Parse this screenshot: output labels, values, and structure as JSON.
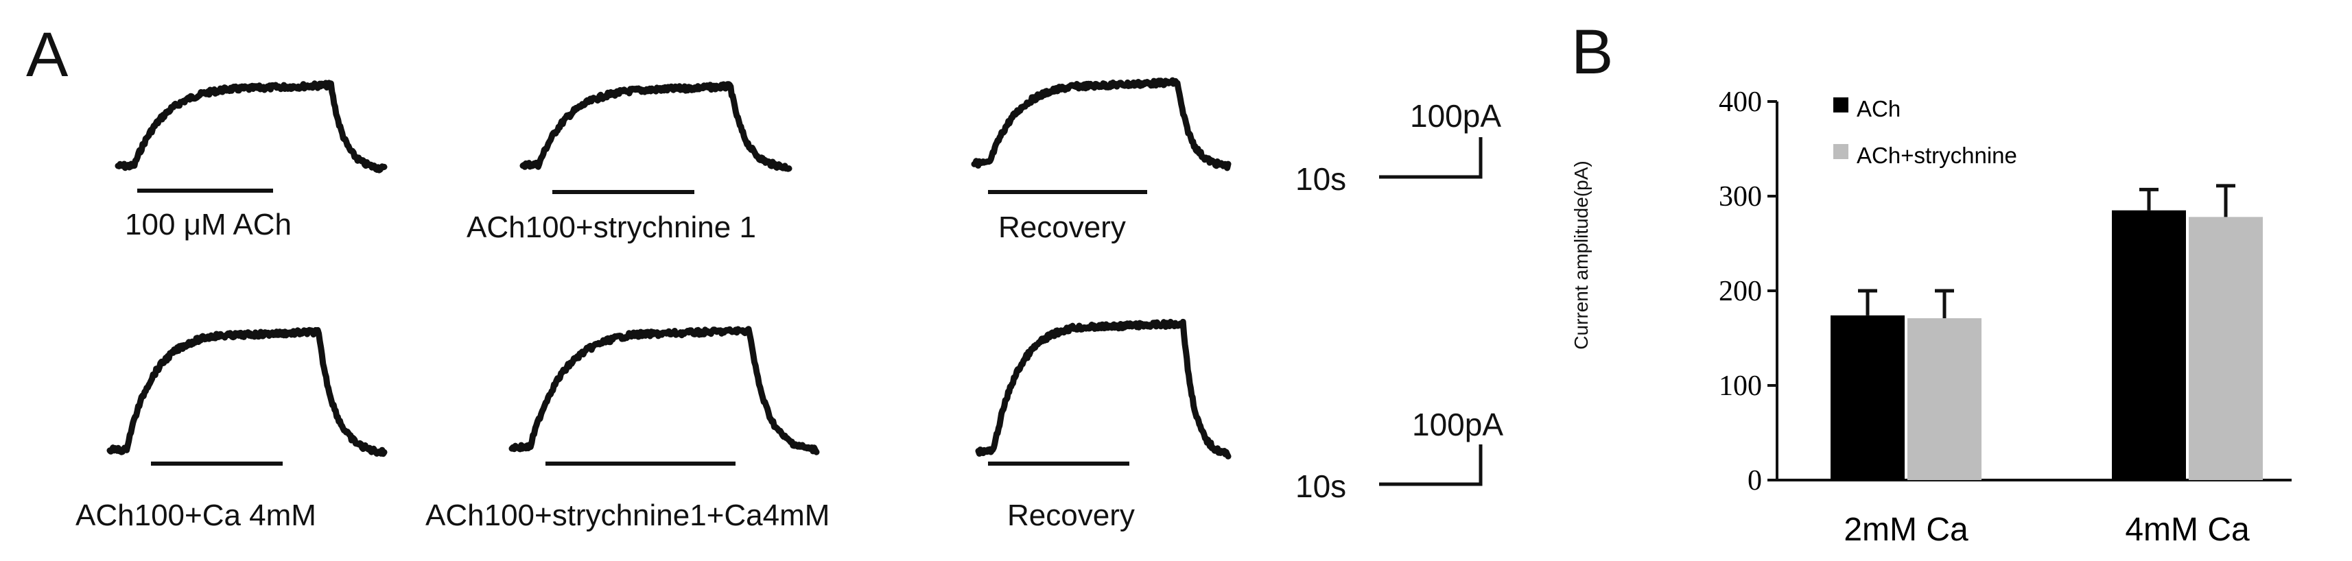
{
  "panel_a": {
    "letter": "A",
    "rows": [
      {
        "traces": [
          {
            "label": "100 μM ACh"
          },
          {
            "label": "ACh100+strychnine 1"
          },
          {
            "label": "Recovery"
          }
        ],
        "scale": {
          "time": "10s",
          "current": "100pA"
        }
      },
      {
        "traces": [
          {
            "label": "ACh100+Ca 4mM"
          },
          {
            "label": "ACh100+strychnine1+Ca4mM"
          },
          {
            "label": "Recovery"
          }
        ],
        "scale": {
          "time": "10s",
          "current": "100pA"
        }
      }
    ]
  },
  "panel_b": {
    "letter": "B",
    "chart_data": {
      "type": "bar",
      "categories": [
        "2mM Ca",
        "4mM Ca"
      ],
      "series": [
        {
          "name": "ACh",
          "color": "#000000",
          "values": [
            174,
            285
          ],
          "errors": [
            26,
            22
          ]
        },
        {
          "name": "ACh+strychnine",
          "color": "#bdbdbd",
          "values": [
            171,
            278
          ],
          "errors": [
            29,
            33
          ]
        }
      ],
      "ylabel": "Current amplitude(pA)",
      "xlabel": "",
      "ylim": [
        0,
        400
      ],
      "yticks": [
        0,
        100,
        200,
        300,
        400
      ],
      "legend_position": "top-left",
      "grid": false
    }
  }
}
